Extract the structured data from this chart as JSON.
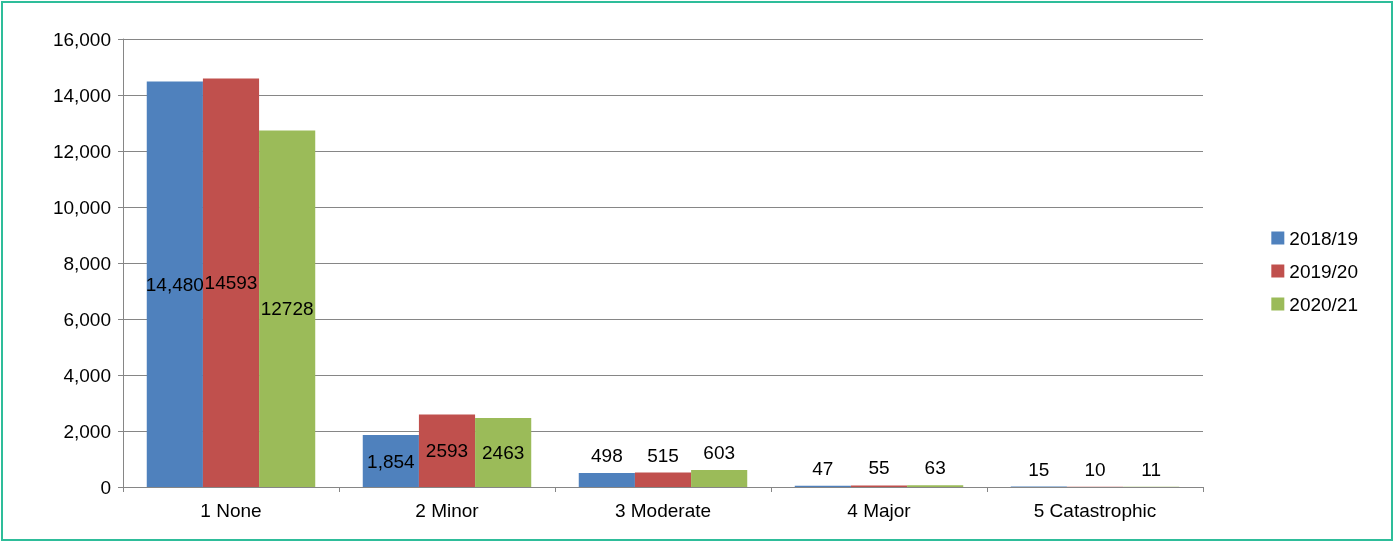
{
  "chart_data": {
    "type": "bar",
    "categories": [
      "1 None",
      "2 Minor",
      "3 Moderate",
      "4 Major",
      "5 Catastrophic"
    ],
    "series": [
      {
        "name": "2018/19",
        "color": "#4f81bd",
        "values": [
          14480,
          1854,
          498,
          47,
          15
        ],
        "value_labels": [
          "14,480",
          "1,854",
          "498",
          "47",
          "15"
        ]
      },
      {
        "name": "2019/20",
        "color": "#c0504d",
        "values": [
          14593,
          2593,
          515,
          55,
          10
        ],
        "value_labels": [
          "14593",
          "2593",
          "515",
          "55",
          "10"
        ]
      },
      {
        "name": "2020/21",
        "color": "#9bbb59",
        "values": [
          12728,
          2463,
          603,
          63,
          11
        ],
        "value_labels": [
          "12728",
          "2463",
          "603",
          "63",
          "11"
        ]
      }
    ],
    "ylim": [
      0,
      16000
    ],
    "yticks": [
      {
        "value": 0,
        "label": "0"
      },
      {
        "value": 2000,
        "label": "2,000"
      },
      {
        "value": 4000,
        "label": "4,000"
      },
      {
        "value": 6000,
        "label": "6,000"
      },
      {
        "value": 8000,
        "label": "8,000"
      },
      {
        "value": 10000,
        "label": "10,000"
      },
      {
        "value": 12000,
        "label": "12,000"
      },
      {
        "value": 14000,
        "label": "14,000"
      },
      {
        "value": 16000,
        "label": "16,000"
      }
    ],
    "grid": "y",
    "legend": "right"
  }
}
